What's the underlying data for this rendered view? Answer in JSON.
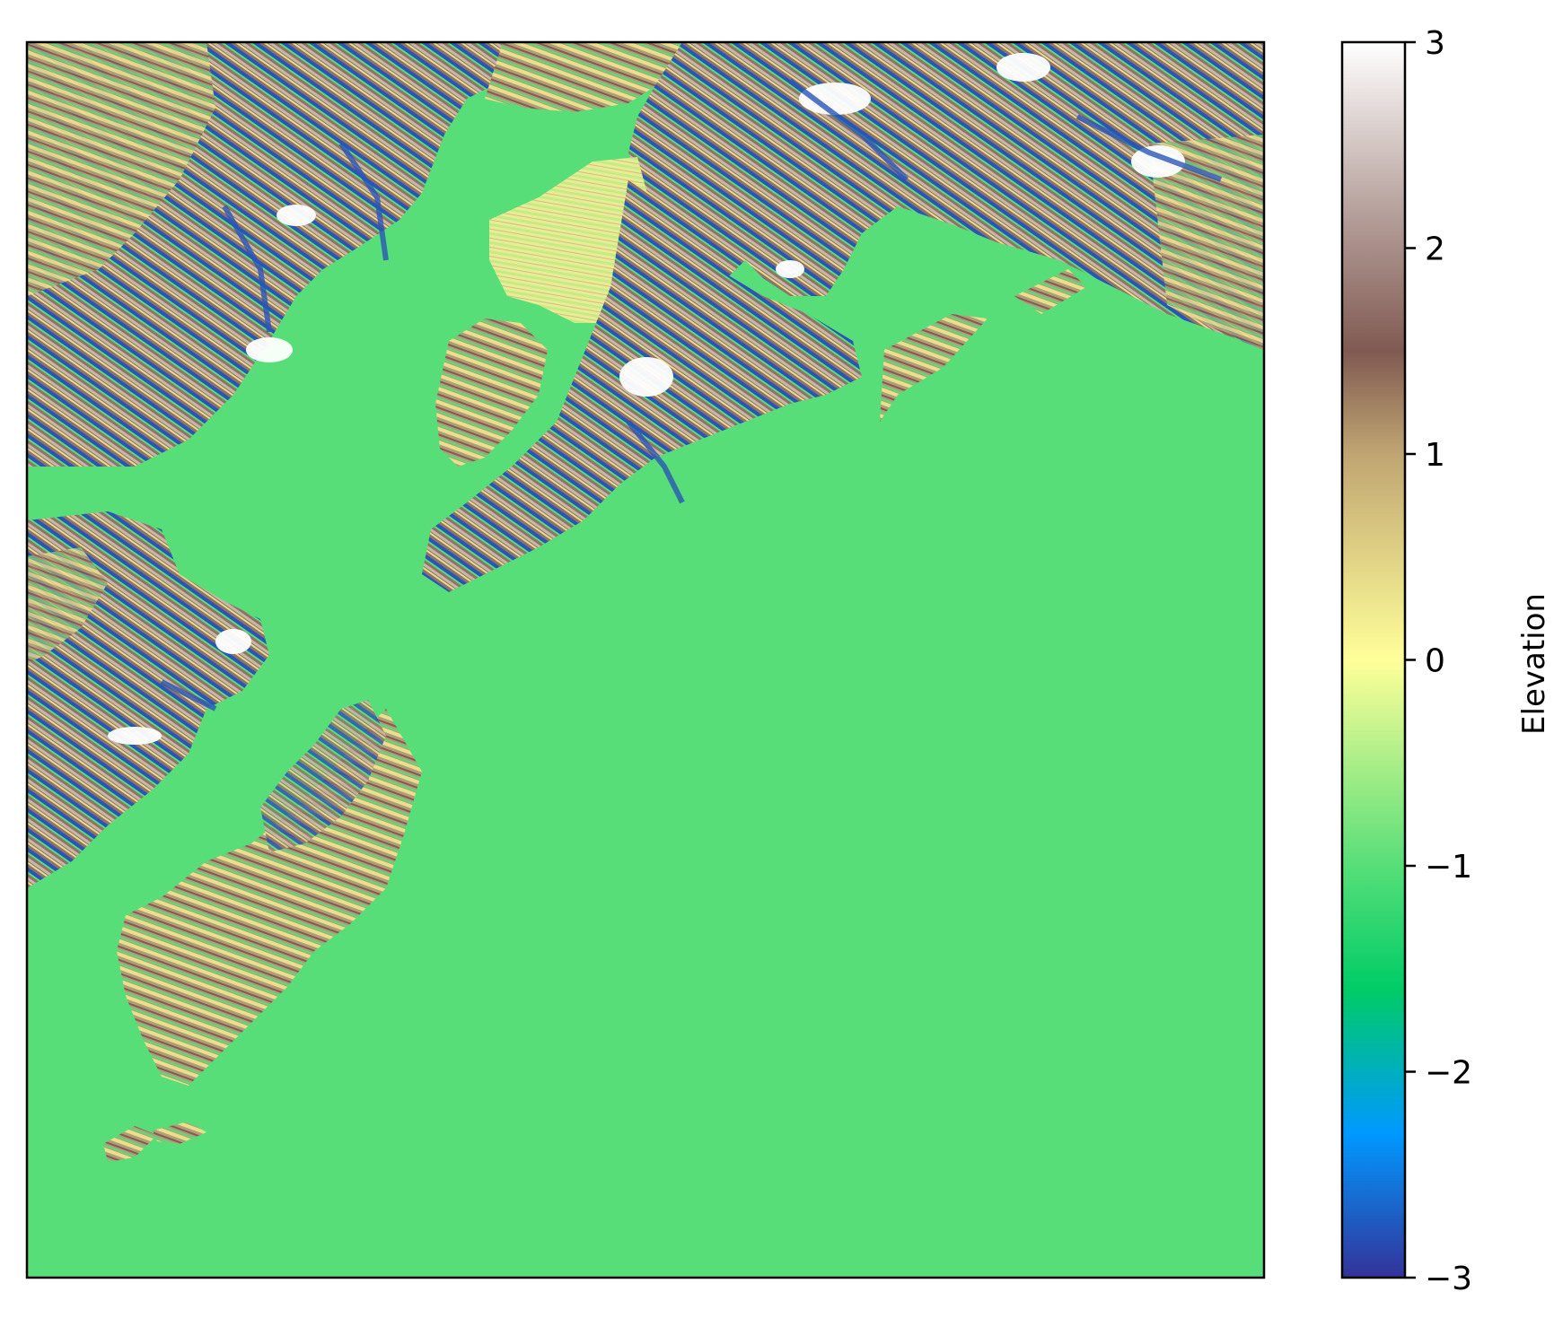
{
  "figure": {
    "kind": "elevation raster map",
    "axes_ticks_visible": false
  },
  "map": {
    "colormap": "terrain",
    "water_color": "#57de78",
    "features": [
      {
        "name": "mainland-north",
        "class": "land",
        "elevation": "high"
      },
      {
        "name": "inlet",
        "class": "water"
      },
      {
        "name": "peninsula-central",
        "class": "land",
        "elevation": "mixed"
      },
      {
        "name": "mountain-range-east",
        "class": "land",
        "elevation": "high"
      },
      {
        "name": "west-coast-peninsula",
        "class": "land",
        "elevation": "mixed"
      },
      {
        "name": "island-group-southwest",
        "class": "land",
        "elevation": "low"
      },
      {
        "name": "open-sea",
        "class": "water"
      }
    ]
  },
  "colorbar": {
    "label": "Elevation",
    "range": [
      -3,
      3
    ],
    "ticks": [
      {
        "value": 3,
        "text": "3"
      },
      {
        "value": 2,
        "text": "2"
      },
      {
        "value": 1,
        "text": "1"
      },
      {
        "value": 0,
        "text": "0"
      },
      {
        "value": -1,
        "text": "−1"
      },
      {
        "value": -2,
        "text": "−2"
      },
      {
        "value": -3,
        "text": "−3"
      }
    ],
    "stops": [
      {
        "value": -3,
        "color": "#333399"
      },
      {
        "value": -2.3,
        "color": "#0099ff"
      },
      {
        "value": -1.6,
        "color": "#00cc66"
      },
      {
        "value": -1.0,
        "color": "#57de78"
      },
      {
        "value": -0.5,
        "color": "#aaee88"
      },
      {
        "value": 0,
        "color": "#ffff99"
      },
      {
        "value": 1,
        "color": "#c0a572"
      },
      {
        "value": 1.5,
        "color": "#805a52"
      },
      {
        "value": 2.2,
        "color": "#b8a39e"
      },
      {
        "value": 3,
        "color": "#ffffff"
      }
    ]
  }
}
